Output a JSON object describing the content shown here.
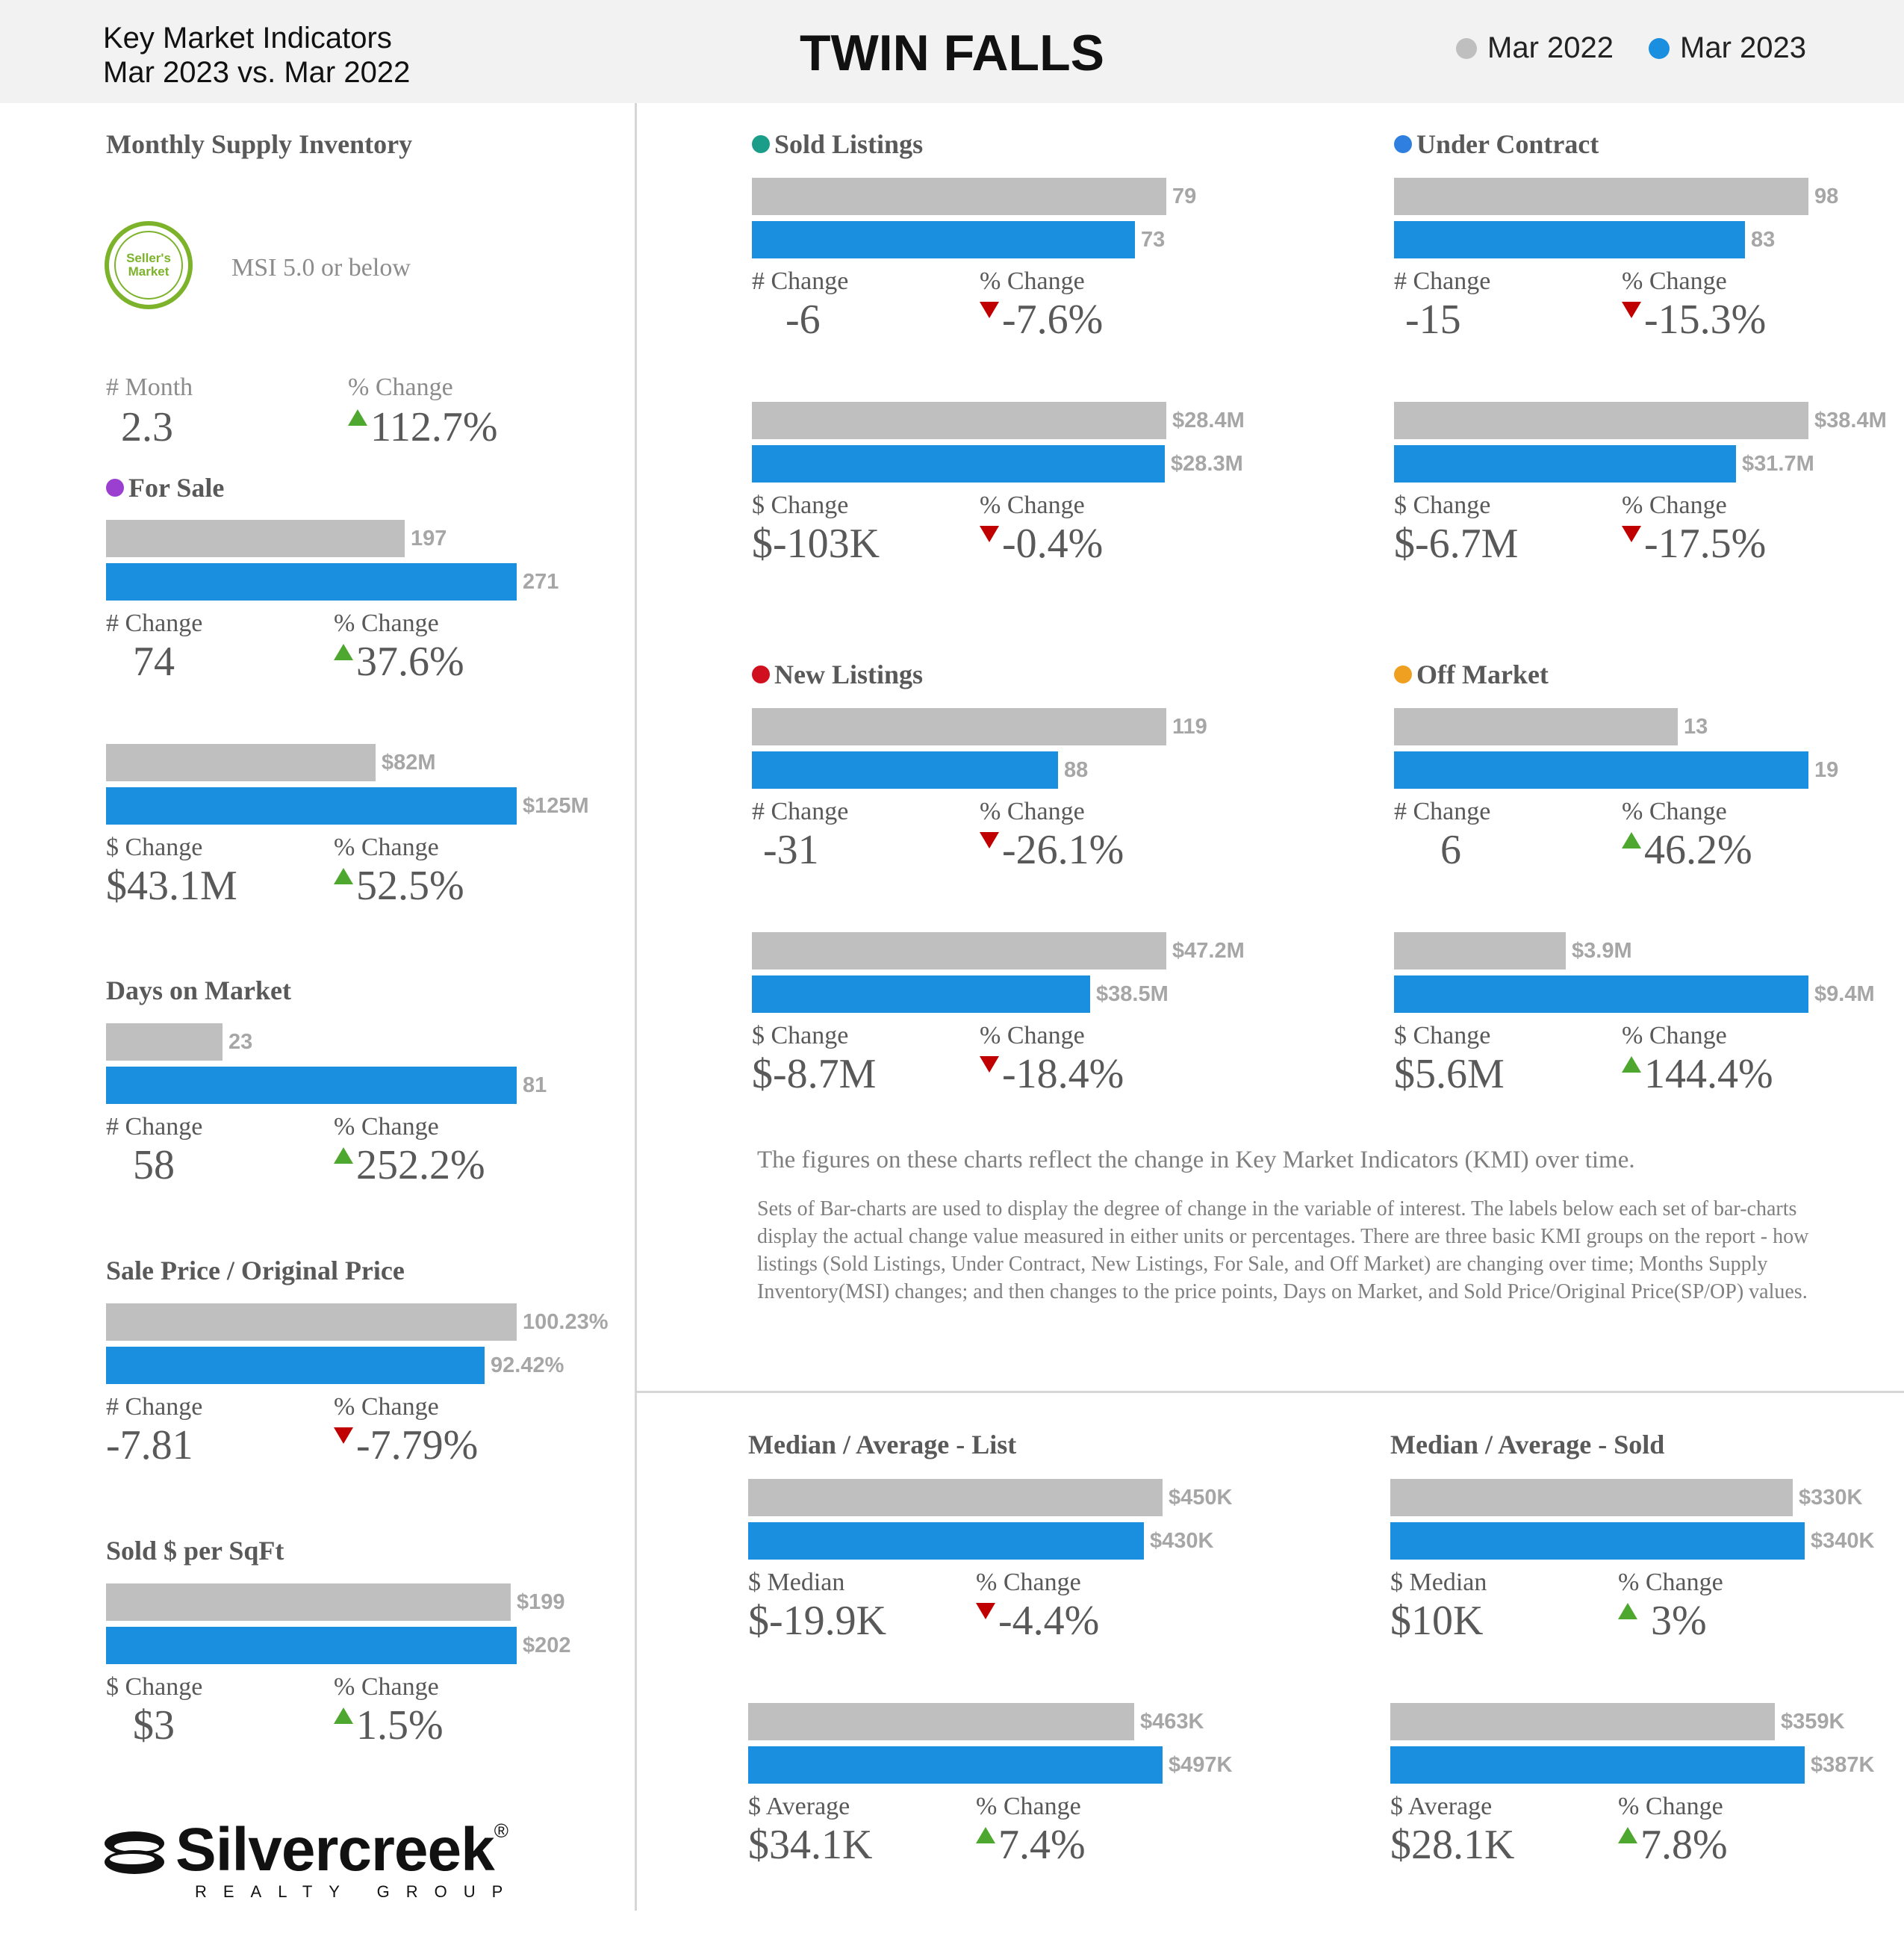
{
  "header": {
    "subtitle_line1": "Key Market Indicators",
    "subtitle_line2": "Mar 2023 vs. Mar 2022",
    "title": "TWIN FALLS",
    "legend": [
      {
        "label": "Mar 2022",
        "color": "#bfbfbf"
      },
      {
        "label": "Mar 2023",
        "color": "#1a8fdf"
      }
    ]
  },
  "msi": {
    "title": "Monthly Supply Inventory",
    "badge_line1": "Seller's",
    "badge_line2": "Market",
    "badge_text": "MSI 5.0 or below",
    "month_label": "# Month",
    "month_value": "2.3",
    "pct_label": "% Change",
    "pct_value": "112.7%",
    "pct_direction": "up"
  },
  "chart_data": [
    {
      "id": "for_sale_count",
      "type": "bar",
      "title": "For Sale",
      "title_dot": "#9b3fd1",
      "categories": [
        "Mar 2022",
        "Mar 2023"
      ],
      "values": [
        197,
        271
      ],
      "labels": [
        "197",
        "271"
      ],
      "change_label": "# Change",
      "change_value": "74",
      "pct_label": "% Change",
      "pct_value": "37.6%",
      "direction": "up"
    },
    {
      "id": "for_sale_volume",
      "type": "bar",
      "categories": [
        "Mar 2022",
        "Mar 2023"
      ],
      "values": [
        82,
        125
      ],
      "labels": [
        "$82M",
        "$125M"
      ],
      "change_label": "$ Change",
      "change_value": "$43.1M",
      "pct_label": "% Change",
      "pct_value": "52.5%",
      "direction": "up"
    },
    {
      "id": "days_on_market",
      "type": "bar",
      "title": "Days on Market",
      "categories": [
        "Mar 2022",
        "Mar 2023"
      ],
      "values": [
        23,
        81
      ],
      "labels": [
        "23",
        "81"
      ],
      "change_label": "# Change",
      "change_value": "58",
      "pct_label": "% Change",
      "pct_value": "252.2%",
      "direction": "up"
    },
    {
      "id": "sp_op",
      "type": "bar",
      "title": "Sale Price / Original Price",
      "categories": [
        "Mar 2022",
        "Mar 2023"
      ],
      "values": [
        100.23,
        92.42
      ],
      "labels": [
        "100.23%",
        "92.42%"
      ],
      "change_label": "# Change",
      "change_value": "-7.81",
      "pct_label": "% Change",
      "pct_value": "-7.79%",
      "direction": "down"
    },
    {
      "id": "sold_sqft",
      "type": "bar",
      "title": "Sold $ per SqFt",
      "categories": [
        "Mar 2022",
        "Mar 2023"
      ],
      "values": [
        199,
        202
      ],
      "labels": [
        "$199",
        "$202"
      ],
      "change_label": "$ Change",
      "change_value": "$3",
      "pct_label": "% Change",
      "pct_value": "1.5%",
      "direction": "up"
    },
    {
      "id": "sold_count",
      "type": "bar",
      "title": "Sold Listings",
      "title_dot": "#1a9e8a",
      "categories": [
        "Mar 2022",
        "Mar 2023"
      ],
      "values": [
        79,
        73
      ],
      "labels": [
        "79",
        "73"
      ],
      "change_label": "# Change",
      "change_value": "-6",
      "pct_label": "% Change",
      "pct_value": "-7.6%",
      "direction": "down"
    },
    {
      "id": "sold_volume",
      "type": "bar",
      "categories": [
        "Mar 2022",
        "Mar 2023"
      ],
      "values": [
        28.4,
        28.3
      ],
      "labels": [
        "$28.4M",
        "$28.3M"
      ],
      "change_label": "$ Change",
      "change_value": "$-103K",
      "pct_label": "% Change",
      "pct_value": "-0.4%",
      "direction": "down"
    },
    {
      "id": "uc_count",
      "type": "bar",
      "title": "Under Contract",
      "title_dot": "#2f7fe0",
      "categories": [
        "Mar 2022",
        "Mar 2023"
      ],
      "values": [
        98,
        83
      ],
      "labels": [
        "98",
        "83"
      ],
      "change_label": "# Change",
      "change_value": "-15",
      "pct_label": "% Change",
      "pct_value": "-15.3%",
      "direction": "down"
    },
    {
      "id": "uc_volume",
      "type": "bar",
      "categories": [
        "Mar 2022",
        "Mar 2023"
      ],
      "values": [
        38.4,
        31.7
      ],
      "labels": [
        "$38.4M",
        "$31.7M"
      ],
      "change_label": "$ Change",
      "change_value": "$-6.7M",
      "pct_label": "% Change",
      "pct_value": "-17.5%",
      "direction": "down"
    },
    {
      "id": "new_count",
      "type": "bar",
      "title": "New Listings",
      "title_dot": "#d0101f",
      "categories": [
        "Mar 2022",
        "Mar 2023"
      ],
      "values": [
        119,
        88
      ],
      "labels": [
        "119",
        "88"
      ],
      "change_label": "# Change",
      "change_value": "-31",
      "pct_label": "% Change",
      "pct_value": "-26.1%",
      "direction": "down"
    },
    {
      "id": "new_volume",
      "type": "bar",
      "categories": [
        "Mar 2022",
        "Mar 2023"
      ],
      "values": [
        47.2,
        38.5
      ],
      "labels": [
        "$47.2M",
        "$38.5M"
      ],
      "change_label": "$ Change",
      "change_value": "$-8.7M",
      "pct_label": "% Change",
      "pct_value": "-18.4%",
      "direction": "down"
    },
    {
      "id": "off_count",
      "type": "bar",
      "title": "Off Market",
      "title_dot": "#f0a020",
      "categories": [
        "Mar 2022",
        "Mar 2023"
      ],
      "values": [
        13,
        19
      ],
      "labels": [
        "13",
        "19"
      ],
      "change_label": "# Change",
      "change_value": "6",
      "pct_label": "% Change",
      "pct_value": "46.2%",
      "direction": "up"
    },
    {
      "id": "off_volume",
      "type": "bar",
      "categories": [
        "Mar 2022",
        "Mar 2023"
      ],
      "values": [
        3.9,
        9.4
      ],
      "labels": [
        "$3.9M",
        "$9.4M"
      ],
      "change_label": "$ Change",
      "change_value": "$5.6M",
      "pct_label": "% Change",
      "pct_value": "144.4%",
      "direction": "up"
    },
    {
      "id": "list_median",
      "type": "bar",
      "title": "Median / Average - List",
      "categories": [
        "Mar 2022",
        "Mar 2023"
      ],
      "values": [
        450,
        430
      ],
      "labels": [
        "$450K",
        "$430K"
      ],
      "change_label": "$ Median",
      "change_value": "$-19.9K",
      "pct_label": "% Change",
      "pct_value": "-4.4%",
      "direction": "down"
    },
    {
      "id": "list_average",
      "type": "bar",
      "categories": [
        "Mar 2022",
        "Mar 2023"
      ],
      "values": [
        463,
        497
      ],
      "labels": [
        "$463K",
        "$497K"
      ],
      "change_label": "$ Average",
      "change_value": "$34.1K",
      "pct_label": "% Change",
      "pct_value": "7.4%",
      "direction": "up"
    },
    {
      "id": "sold_median",
      "type": "bar",
      "title": "Median / Average - Sold",
      "categories": [
        "Mar 2022",
        "Mar 2023"
      ],
      "values": [
        330,
        340
      ],
      "labels": [
        "$330K",
        "$340K"
      ],
      "change_label": "$ Median",
      "change_value": "$10K",
      "pct_label": "% Change",
      "pct_value": " 3%",
      "direction": "up"
    },
    {
      "id": "sold_average",
      "type": "bar",
      "categories": [
        "Mar 2022",
        "Mar 2023"
      ],
      "values": [
        359,
        387
      ],
      "labels": [
        "$359K",
        "$387K"
      ],
      "change_label": "$ Average",
      "change_value": "$28.1K",
      "pct_label": "% Change",
      "pct_value": "7.8%",
      "direction": "up"
    }
  ],
  "notes": {
    "line1": "The figures on these charts reflect the change in Key Market Indicators (KMI) over time.",
    "paragraph": "Sets of Bar-charts are used to display the degree of change in the variable of interest. The labels below each set of bar-charts display the actual change value measured in either units or percentages. There are three basic KMI groups on the report - how listings (Sold Listings, Under Contract, New Listings, For Sale, and Off Market) are changing over time; Months Supply Inventory(MSI) changes; and then changes to the price points, Days on Market, and Sold Price/Original Price(SP/OP) values."
  },
  "logo": {
    "name": "Silvercreek",
    "reg": "®",
    "tagline": "REALTY GROUP"
  }
}
